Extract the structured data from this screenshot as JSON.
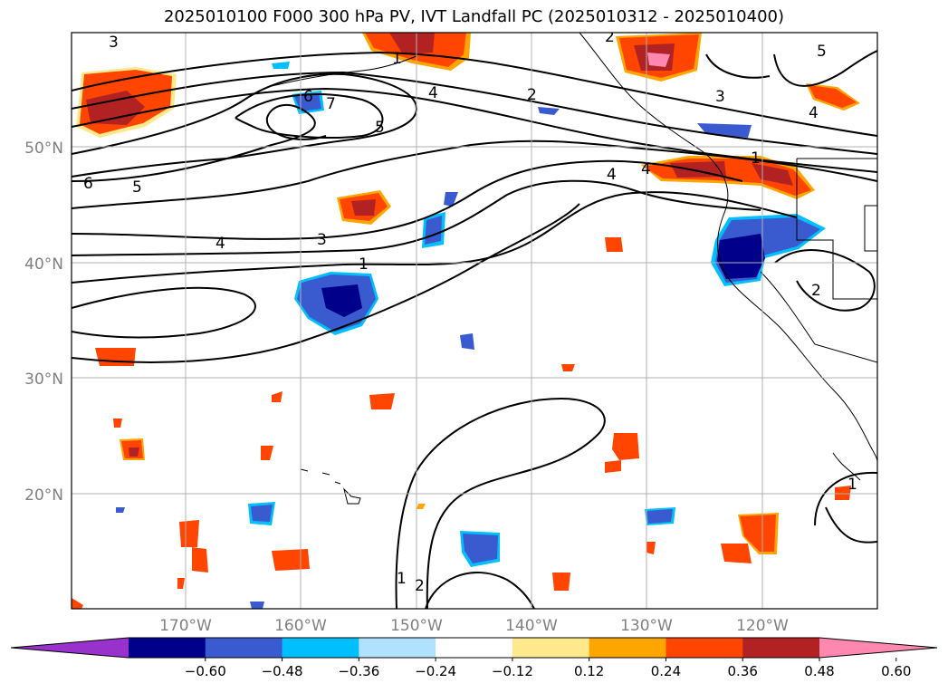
{
  "title": "2025010100 F000 300 hPa PV, IVT Landfall PC (2025010312 - 2025010400)",
  "lat_labels": [
    "50°N",
    "40°N",
    "30°N",
    "20°N"
  ],
  "lon_labels": [
    "170°W",
    "160°W",
    "150°W",
    "140°W",
    "130°W",
    "120°W"
  ],
  "colorbar": {
    "colors": [
      "#9932cc",
      "#00008b",
      "#3a5bcf",
      "#00bfff",
      "#b0e2ff",
      "#ffffff",
      "#ffe98c",
      "#ffa500",
      "#ff4500",
      "#b22222",
      "#ff88b0"
    ],
    "tick_labels": [
      "−0.60",
      "−0.48",
      "−0.36",
      "−0.24",
      "−0.12",
      "0.12",
      "0.24",
      "0.36",
      "0.48",
      "0.60"
    ]
  },
  "contour_labels": [
    "3",
    "1",
    "2",
    "5",
    "4",
    "2",
    "3",
    "4",
    "6",
    "7",
    "5",
    "6",
    "5",
    "4",
    "4",
    "1",
    "4",
    "3",
    "1",
    "2",
    "1",
    "2",
    "1"
  ],
  "colors": {
    "contour": "#000000",
    "grid": "#b0b0b0",
    "axis_label": "#808080"
  }
}
